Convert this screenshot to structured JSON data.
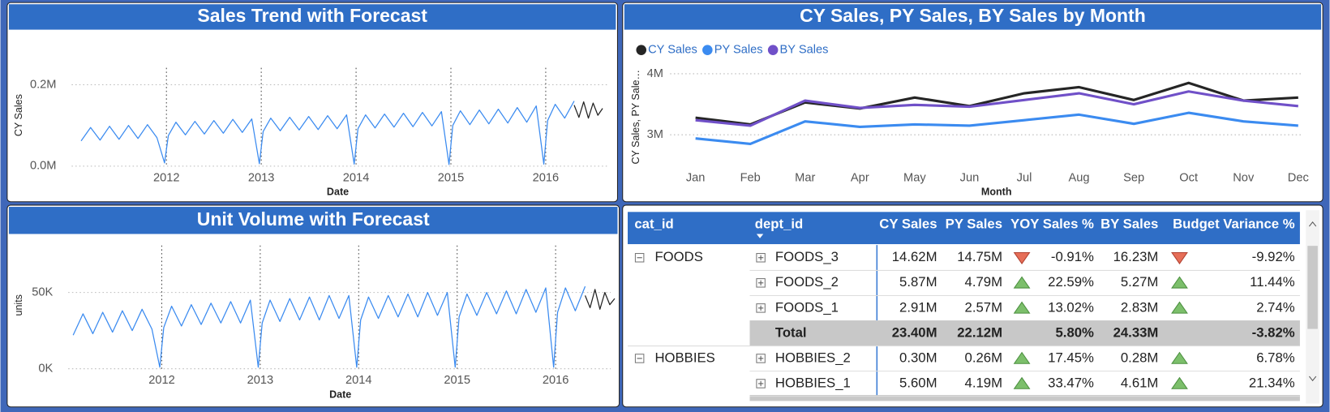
{
  "chart_data": [
    {
      "type": "line",
      "title": "Sales Trend with Forecast",
      "x_label": "Date",
      "y_label": "CY Sales",
      "grid": true,
      "xgrid": true,
      "xlim": [
        2011,
        2016.65
      ],
      "xticks": [
        2012,
        2013,
        2014,
        2015,
        2016
      ],
      "ylim": [
        0,
        250000
      ],
      "yticks": [
        {
          "value": 0,
          "label": "0.0M"
        },
        {
          "value": 200000,
          "label": "0.2M"
        }
      ],
      "series": [
        {
          "color": "#3b8bf0",
          "x": [
            2011.1,
            2011.2,
            2011.3,
            2011.4,
            2011.5,
            2011.6,
            2011.7,
            2011.8,
            2011.9,
            2011.98,
            2012.02,
            2012.1,
            2012.2,
            2012.3,
            2012.4,
            2012.5,
            2012.6,
            2012.7,
            2012.8,
            2012.9,
            2012.98,
            2013.02,
            2013.1,
            2013.2,
            2013.3,
            2013.4,
            2013.5,
            2013.6,
            2013.7,
            2013.8,
            2013.9,
            2013.98,
            2014.02,
            2014.1,
            2014.2,
            2014.3,
            2014.4,
            2014.5,
            2014.6,
            2014.7,
            2014.8,
            2014.9,
            2014.98,
            2015.02,
            2015.1,
            2015.2,
            2015.3,
            2015.4,
            2015.5,
            2015.6,
            2015.7,
            2015.8,
            2015.9,
            2015.98,
            2016.02,
            2016.1,
            2016.2,
            2016.3
          ],
          "values": [
            62000,
            95000,
            64000,
            98000,
            66000,
            100000,
            68000,
            102000,
            70000,
            8000,
            75000,
            108000,
            77000,
            110000,
            79000,
            112000,
            81000,
            115000,
            83000,
            116000,
            6000,
            85000,
            118000,
            87000,
            120000,
            89000,
            122000,
            90000,
            124000,
            92000,
            126000,
            5000,
            92000,
            126000,
            94000,
            128000,
            96000,
            130000,
            97000,
            132000,
            99000,
            134000,
            4000,
            100000,
            136000,
            102000,
            138000,
            104000,
            140000,
            106000,
            144000,
            108000,
            148000,
            5000,
            112000,
            152000,
            118000,
            160000
          ]
        },
        {
          "color": "#222222",
          "x": [
            2016.3,
            2016.35,
            2016.4,
            2016.45,
            2016.5,
            2016.55,
            2016.6
          ],
          "values": [
            150000,
            120000,
            158000,
            118000,
            155000,
            125000,
            142000
          ]
        }
      ]
    },
    {
      "type": "line",
      "title": "CY Sales, PY Sales, BY Sales by Month",
      "x_label": "Month",
      "y_label": "CY Sales, PY Sale…",
      "grid": true,
      "legend": "top-left",
      "categories": [
        "Jan",
        "Feb",
        "Mar",
        "Apr",
        "May",
        "Jun",
        "Jul",
        "Aug",
        "Sep",
        "Oct",
        "Nov",
        "Dec"
      ],
      "ylim": [
        2500000,
        4150000
      ],
      "yticks": [
        {
          "value": 3000000,
          "label": "3M"
        },
        {
          "value": 4000000,
          "label": "4M"
        }
      ],
      "series": [
        {
          "name": "CY Sales",
          "color": "#252525",
          "values": [
            3280000,
            3170000,
            3530000,
            3430000,
            3610000,
            3470000,
            3680000,
            3780000,
            3570000,
            3850000,
            3560000,
            3610000
          ]
        },
        {
          "name": "PY Sales",
          "color": "#3b8bf0",
          "values": [
            2940000,
            2850000,
            3220000,
            3130000,
            3170000,
            3150000,
            3240000,
            3330000,
            3180000,
            3360000,
            3220000,
            3150000
          ]
        },
        {
          "name": "BY Sales",
          "color": "#7050c8",
          "values": [
            3240000,
            3150000,
            3560000,
            3440000,
            3490000,
            3460000,
            3570000,
            3680000,
            3500000,
            3710000,
            3560000,
            3470000
          ]
        }
      ]
    },
    {
      "type": "line",
      "title": "Unit Volume with Forecast",
      "x_label": "Date",
      "y_label": "units",
      "grid": true,
      "xgrid": true,
      "xlim": [
        2011.05,
        2016.56
      ],
      "xticks": [
        2012,
        2013,
        2014,
        2015,
        2016
      ],
      "ylim": [
        0,
        83000
      ],
      "yticks": [
        {
          "value": 0,
          "label": "0K"
        },
        {
          "value": 50000,
          "label": "50K"
        }
      ],
      "series": [
        {
          "color": "#3b8bf0",
          "x": [
            2011.1,
            2011.2,
            2011.3,
            2011.4,
            2011.5,
            2011.6,
            2011.7,
            2011.8,
            2011.9,
            2011.98,
            2012.02,
            2012.1,
            2012.2,
            2012.3,
            2012.4,
            2012.5,
            2012.6,
            2012.7,
            2012.8,
            2012.9,
            2012.98,
            2013.02,
            2013.1,
            2013.2,
            2013.3,
            2013.4,
            2013.5,
            2013.6,
            2013.7,
            2013.8,
            2013.9,
            2013.98,
            2014.02,
            2014.1,
            2014.2,
            2014.3,
            2014.4,
            2014.5,
            2014.6,
            2014.7,
            2014.8,
            2014.9,
            2014.98,
            2015.02,
            2015.1,
            2015.2,
            2015.3,
            2015.4,
            2015.5,
            2015.6,
            2015.7,
            2015.8,
            2015.9,
            2015.98,
            2016.02,
            2016.1,
            2016.2,
            2016.3
          ],
          "values": [
            22000,
            36000,
            23000,
            37000,
            24000,
            38000,
            25000,
            39000,
            26000,
            1000,
            27000,
            41000,
            28000,
            42000,
            29000,
            43000,
            30000,
            44000,
            30000,
            45000,
            1000,
            30000,
            45000,
            31000,
            46000,
            32000,
            47000,
            32000,
            48000,
            33000,
            48000,
            1000,
            32000,
            47000,
            33000,
            48000,
            34000,
            49000,
            34000,
            50000,
            35000,
            50000,
            1000,
            34000,
            49000,
            35000,
            50000,
            36000,
            51000,
            36000,
            52000,
            37000,
            53000,
            1000,
            37000,
            53000,
            38000,
            54000
          ]
        },
        {
          "color": "#222222",
          "x": [
            2016.3,
            2016.35,
            2016.4,
            2016.45,
            2016.5,
            2016.55,
            2016.6
          ],
          "values": [
            48000,
            40000,
            52000,
            39000,
            50000,
            42000,
            46000
          ]
        }
      ]
    }
  ],
  "table": {
    "columns": [
      "cat_id",
      "dept_id",
      "CY Sales",
      "PY Sales",
      "YOY Sales %",
      "BY Sales",
      "Budget Variance %"
    ],
    "groups": [
      {
        "cat_id": "FOODS",
        "rows": [
          [
            "FOODS_3",
            "14.62M",
            "14.75M",
            "-0.91%",
            "16.23M",
            "-9.92%"
          ],
          [
            "FOODS_2",
            "5.87M",
            "4.79M",
            "22.59%",
            "5.27M",
            "11.44%"
          ],
          [
            "FOODS_1",
            "2.91M",
            "2.57M",
            "13.02%",
            "2.83M",
            "2.74%"
          ]
        ],
        "total": [
          "Total",
          "23.40M",
          "22.12M",
          "5.80%",
          "24.33M",
          "-3.82%"
        ]
      },
      {
        "cat_id": "HOBBIES",
        "rows": [
          [
            "HOBBIES_2",
            "0.30M",
            "0.26M",
            "17.45%",
            "0.28M",
            "6.78%"
          ],
          [
            "HOBBIES_1",
            "5.60M",
            "4.19M",
            "33.47%",
            "4.61M",
            "21.34%"
          ]
        ]
      }
    ]
  }
}
